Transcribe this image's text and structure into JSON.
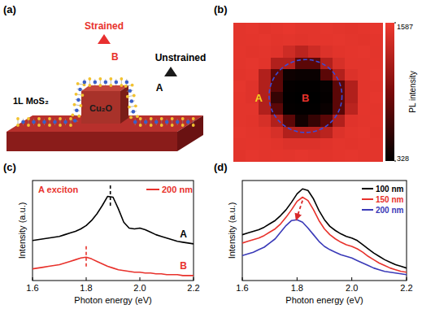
{
  "diagram": {
    "panel": "(a)",
    "strained": "Strained",
    "point_b": "B",
    "unstrained": "Unstrained",
    "point_a": "A",
    "layer": "1L MoS₂",
    "pillar": "Cu₂O"
  },
  "chart_data": [
    {
      "type": "heatmap",
      "panel": "(b)",
      "cells": [
        [
          1520,
          1530,
          1510,
          1525,
          1540,
          1520,
          1515,
          1530,
          1520,
          1510,
          1525,
          1535
        ],
        [
          1515,
          1525,
          1530,
          1510,
          1520,
          1505,
          1520,
          1525,
          1530,
          1520,
          1510,
          1525
        ],
        [
          1525,
          1510,
          1520,
          1500,
          1400,
          1300,
          1400,
          1480,
          1510,
          1525,
          1530,
          1520
        ],
        [
          1520,
          1530,
          1510,
          1250,
          1250,
          800,
          800,
          1250,
          1450,
          1520,
          1515,
          1525
        ],
        [
          1510,
          1525,
          1250,
          800,
          400,
          380,
          380,
          800,
          1250,
          1480,
          1520,
          1530
        ],
        [
          1530,
          1500,
          1250,
          800,
          350,
          340,
          340,
          360,
          800,
          1250,
          1520,
          1515
        ],
        [
          1525,
          1500,
          1250,
          600,
          340,
          330,
          330,
          350,
          800,
          1250,
          1520,
          1530
        ],
        [
          1515,
          1520,
          1250,
          800,
          350,
          340,
          340,
          380,
          800,
          1300,
          1525,
          1520
        ],
        [
          1520,
          1510,
          1450,
          1250,
          800,
          420,
          600,
          800,
          1250,
          1500,
          1515,
          1525
        ],
        [
          1530,
          1520,
          1510,
          1450,
          1250,
          1250,
          1250,
          1300,
          1480,
          1520,
          1530,
          1510
        ],
        [
          1520,
          1525,
          1515,
          1505,
          1480,
          1480,
          1480,
          1500,
          1520,
          1510,
          1525,
          1520
        ],
        [
          1510,
          1530,
          1520,
          1525,
          1515,
          1530,
          1520,
          1510,
          1525,
          1530,
          1515,
          1520
        ]
      ],
      "colorbar_range": [
        328,
        1587
      ],
      "colorbar_ticks": [
        328,
        1587
      ],
      "colorbar_label": "PL intensity",
      "annotations": [
        "A",
        "B"
      ]
    },
    {
      "type": "line",
      "panel": "(c)",
      "x_label": "Photon energy (eV)",
      "y_label": "Intensity (a.u.)",
      "xlim": [
        1.6,
        2.2
      ],
      "xticks": [
        1.6,
        1.8,
        {
          "value": 2,
          "label": "2.0"
        },
        2.2
      ],
      "ylim": [
        0,
        12
      ],
      "tick_labels": "x",
      "annotations": [
        "A exciton",
        "200 nm"
      ],
      "x": [
        1.6,
        1.62,
        1.64,
        1.66,
        1.68,
        1.7,
        1.72,
        1.74,
        1.76,
        1.78,
        1.8,
        1.82,
        1.84,
        1.86,
        1.88,
        1.9,
        1.92,
        1.94,
        1.96,
        1.98,
        2.0,
        2.02,
        2.04,
        2.06,
        2.08,
        2.1,
        2.12,
        2.14,
        2.16,
        2.18,
        2.2
      ],
      "series": [
        {
          "name": "A",
          "color": "#000000",
          "peak": 1.89,
          "values": [
            4.8,
            4.9,
            5.0,
            5.1,
            5.2,
            5.3,
            5.5,
            5.7,
            5.9,
            6.2,
            6.6,
            7.2,
            8.0,
            9.0,
            10.1,
            10.0,
            8.6,
            7.0,
            6.3,
            6.2,
            6.3,
            6.1,
            5.8,
            5.5,
            5.3,
            5.1,
            4.9,
            4.7,
            4.6,
            4.5,
            4.4
          ]
        },
        {
          "name": "B",
          "color": "#e8322c",
          "peak": 1.8,
          "values": [
            1.4,
            1.5,
            1.6,
            1.7,
            1.8,
            1.9,
            2.1,
            2.3,
            2.5,
            2.7,
            2.8,
            2.6,
            2.3,
            2.0,
            1.7,
            1.5,
            1.3,
            1.2,
            1.1,
            1.0,
            1.0,
            0.9,
            0.9,
            0.8,
            0.8,
            0.7,
            0.7,
            0.7,
            0.6,
            0.6,
            0.6
          ]
        }
      ]
    },
    {
      "type": "line",
      "panel": "(d)",
      "x_label": "Photon energy (eV)",
      "y_label": "Intensity (a.u.)",
      "xlim": [
        1.6,
        2.2
      ],
      "xticks": [
        1.6,
        1.8,
        {
          "value": 2,
          "label": "2.0"
        },
        2.2
      ],
      "ylim": [
        0,
        12
      ],
      "tick_labels": "x",
      "legend": "top-right",
      "arrow": {
        "x": [
          1.82,
          1.8
        ],
        "y": [
          9.6,
          7.6
        ]
      },
      "x": [
        1.6,
        1.62,
        1.64,
        1.66,
        1.68,
        1.7,
        1.72,
        1.74,
        1.76,
        1.78,
        1.8,
        1.82,
        1.84,
        1.86,
        1.88,
        1.9,
        1.92,
        1.94,
        1.96,
        1.98,
        2.0,
        2.02,
        2.04,
        2.06,
        2.08,
        2.1,
        2.12,
        2.14,
        2.16,
        2.18,
        2.2
      ],
      "series": [
        {
          "name": "100 nm",
          "color": "#000000",
          "values": [
            5.5,
            5.7,
            5.9,
            6.1,
            6.4,
            6.8,
            7.2,
            7.8,
            8.5,
            9.4,
            10.4,
            11.0,
            10.8,
            9.8,
            8.4,
            7.3,
            6.5,
            6.0,
            5.6,
            5.3,
            5.1,
            4.8,
            4.3,
            3.8,
            3.3,
            2.9,
            2.5,
            2.2,
            1.9,
            1.7,
            1.5
          ]
        },
        {
          "name": "150 nm",
          "color": "#e8322c",
          "values": [
            4.5,
            4.7,
            4.9,
            5.1,
            5.4,
            5.8,
            6.2,
            6.8,
            7.6,
            8.5,
            9.5,
            10.0,
            9.6,
            8.5,
            7.2,
            6.2,
            5.5,
            5.0,
            4.6,
            4.3,
            4.1,
            3.8,
            3.4,
            2.9,
            2.5,
            2.1,
            1.8,
            1.5,
            1.3,
            1.1,
            1.0
          ]
        },
        {
          "name": "200 nm",
          "color": "#3a3ab8",
          "values": [
            3.0,
            3.2,
            3.4,
            3.7,
            4.0,
            4.5,
            5.0,
            5.8,
            6.6,
            7.2,
            7.3,
            7.0,
            6.3,
            5.5,
            4.7,
            4.1,
            3.7,
            3.4,
            3.1,
            2.9,
            2.7,
            2.4,
            2.1,
            1.8,
            1.5,
            1.3,
            1.1,
            1.0,
            0.9,
            0.8,
            0.7
          ]
        }
      ]
    }
  ]
}
